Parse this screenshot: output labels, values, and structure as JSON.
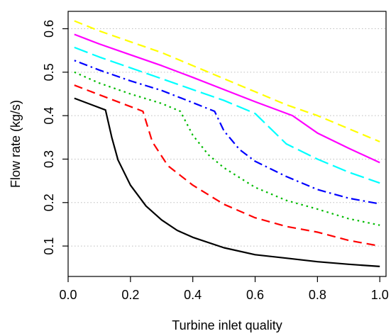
{
  "chart_data": {
    "type": "line",
    "title": "",
    "xlabel": "Turbine inlet quality",
    "ylabel": "Flow rate (kg/s)",
    "xlim": [
      0.0,
      1.02
    ],
    "ylim": [
      0.03,
      0.64
    ],
    "xticks": [
      {
        "value": 0.0,
        "label": "0.0"
      },
      {
        "value": 0.2,
        "label": "0.2"
      },
      {
        "value": 0.4,
        "label": "0.4"
      },
      {
        "value": 0.6,
        "label": "0.6"
      },
      {
        "value": 0.8,
        "label": "0.8"
      },
      {
        "value": 1.0,
        "label": "1.0"
      }
    ],
    "yticks": [
      {
        "value": 0.1,
        "label": "0.1"
      },
      {
        "value": 0.2,
        "label": "0.2"
      },
      {
        "value": 0.3,
        "label": "0.3"
      },
      {
        "value": 0.4,
        "label": "0.4"
      },
      {
        "value": 0.5,
        "label": "0.5"
      },
      {
        "value": 0.6,
        "label": "0.6"
      }
    ],
    "grid": "horizontal dotted",
    "legend": "none",
    "series": [
      {
        "color": "#000000",
        "dash": "solid",
        "x": [
          0.02,
          0.12,
          0.14,
          0.16,
          0.2,
          0.25,
          0.3,
          0.35,
          0.4,
          0.5,
          0.6,
          0.7,
          0.8,
          0.9,
          1.0
        ],
        "y": [
          0.44,
          0.413,
          0.35,
          0.298,
          0.24,
          0.192,
          0.16,
          0.136,
          0.12,
          0.096,
          0.08,
          0.072,
          0.064,
          0.058,
          0.053
        ]
      },
      {
        "color": "#ff0000",
        "dash": "dash",
        "x": [
          0.02,
          0.1,
          0.24,
          0.27,
          0.32,
          0.4,
          0.5,
          0.6,
          0.7,
          0.8,
          0.9,
          1.0
        ],
        "y": [
          0.47,
          0.448,
          0.41,
          0.34,
          0.285,
          0.24,
          0.196,
          0.165,
          0.145,
          0.132,
          0.113,
          0.1
        ]
      },
      {
        "color": "#00bb00",
        "dash": "dot",
        "x": [
          0.02,
          0.1,
          0.2,
          0.3,
          0.36,
          0.4,
          0.45,
          0.5,
          0.6,
          0.7,
          0.8,
          0.9,
          1.0
        ],
        "y": [
          0.5,
          0.475,
          0.45,
          0.428,
          0.41,
          0.355,
          0.31,
          0.28,
          0.235,
          0.205,
          0.185,
          0.163,
          0.148
        ]
      },
      {
        "color": "#0000ff",
        "dash": "dotdash",
        "x": [
          0.02,
          0.1,
          0.2,
          0.3,
          0.4,
          0.47,
          0.5,
          0.55,
          0.6,
          0.7,
          0.8,
          0.9,
          1.0
        ],
        "y": [
          0.527,
          0.505,
          0.48,
          0.458,
          0.43,
          0.41,
          0.365,
          0.322,
          0.295,
          0.26,
          0.23,
          0.21,
          0.197
        ]
      },
      {
        "color": "#00ffff",
        "dash": "longdash",
        "x": [
          0.02,
          0.1,
          0.2,
          0.3,
          0.4,
          0.5,
          0.6,
          0.7,
          0.8,
          0.9,
          1.0
        ],
        "y": [
          0.557,
          0.535,
          0.51,
          0.485,
          0.46,
          0.435,
          0.405,
          0.335,
          0.3,
          0.27,
          0.245
        ]
      },
      {
        "color": "#ff00ff",
        "dash": "solid",
        "x": [
          0.02,
          0.1,
          0.2,
          0.3,
          0.4,
          0.5,
          0.6,
          0.72,
          0.8,
          0.9,
          1.0
        ],
        "y": [
          0.587,
          0.565,
          0.54,
          0.515,
          0.488,
          0.46,
          0.432,
          0.4,
          0.36,
          0.325,
          0.292
        ]
      },
      {
        "color": "#ffff00",
        "dash": "dash",
        "x": [
          0.02,
          0.1,
          0.2,
          0.3,
          0.4,
          0.5,
          0.6,
          0.7,
          0.8,
          0.9,
          1.0
        ],
        "y": [
          0.618,
          0.595,
          0.57,
          0.545,
          0.515,
          0.485,
          0.455,
          0.425,
          0.4,
          0.37,
          0.34
        ]
      }
    ]
  }
}
